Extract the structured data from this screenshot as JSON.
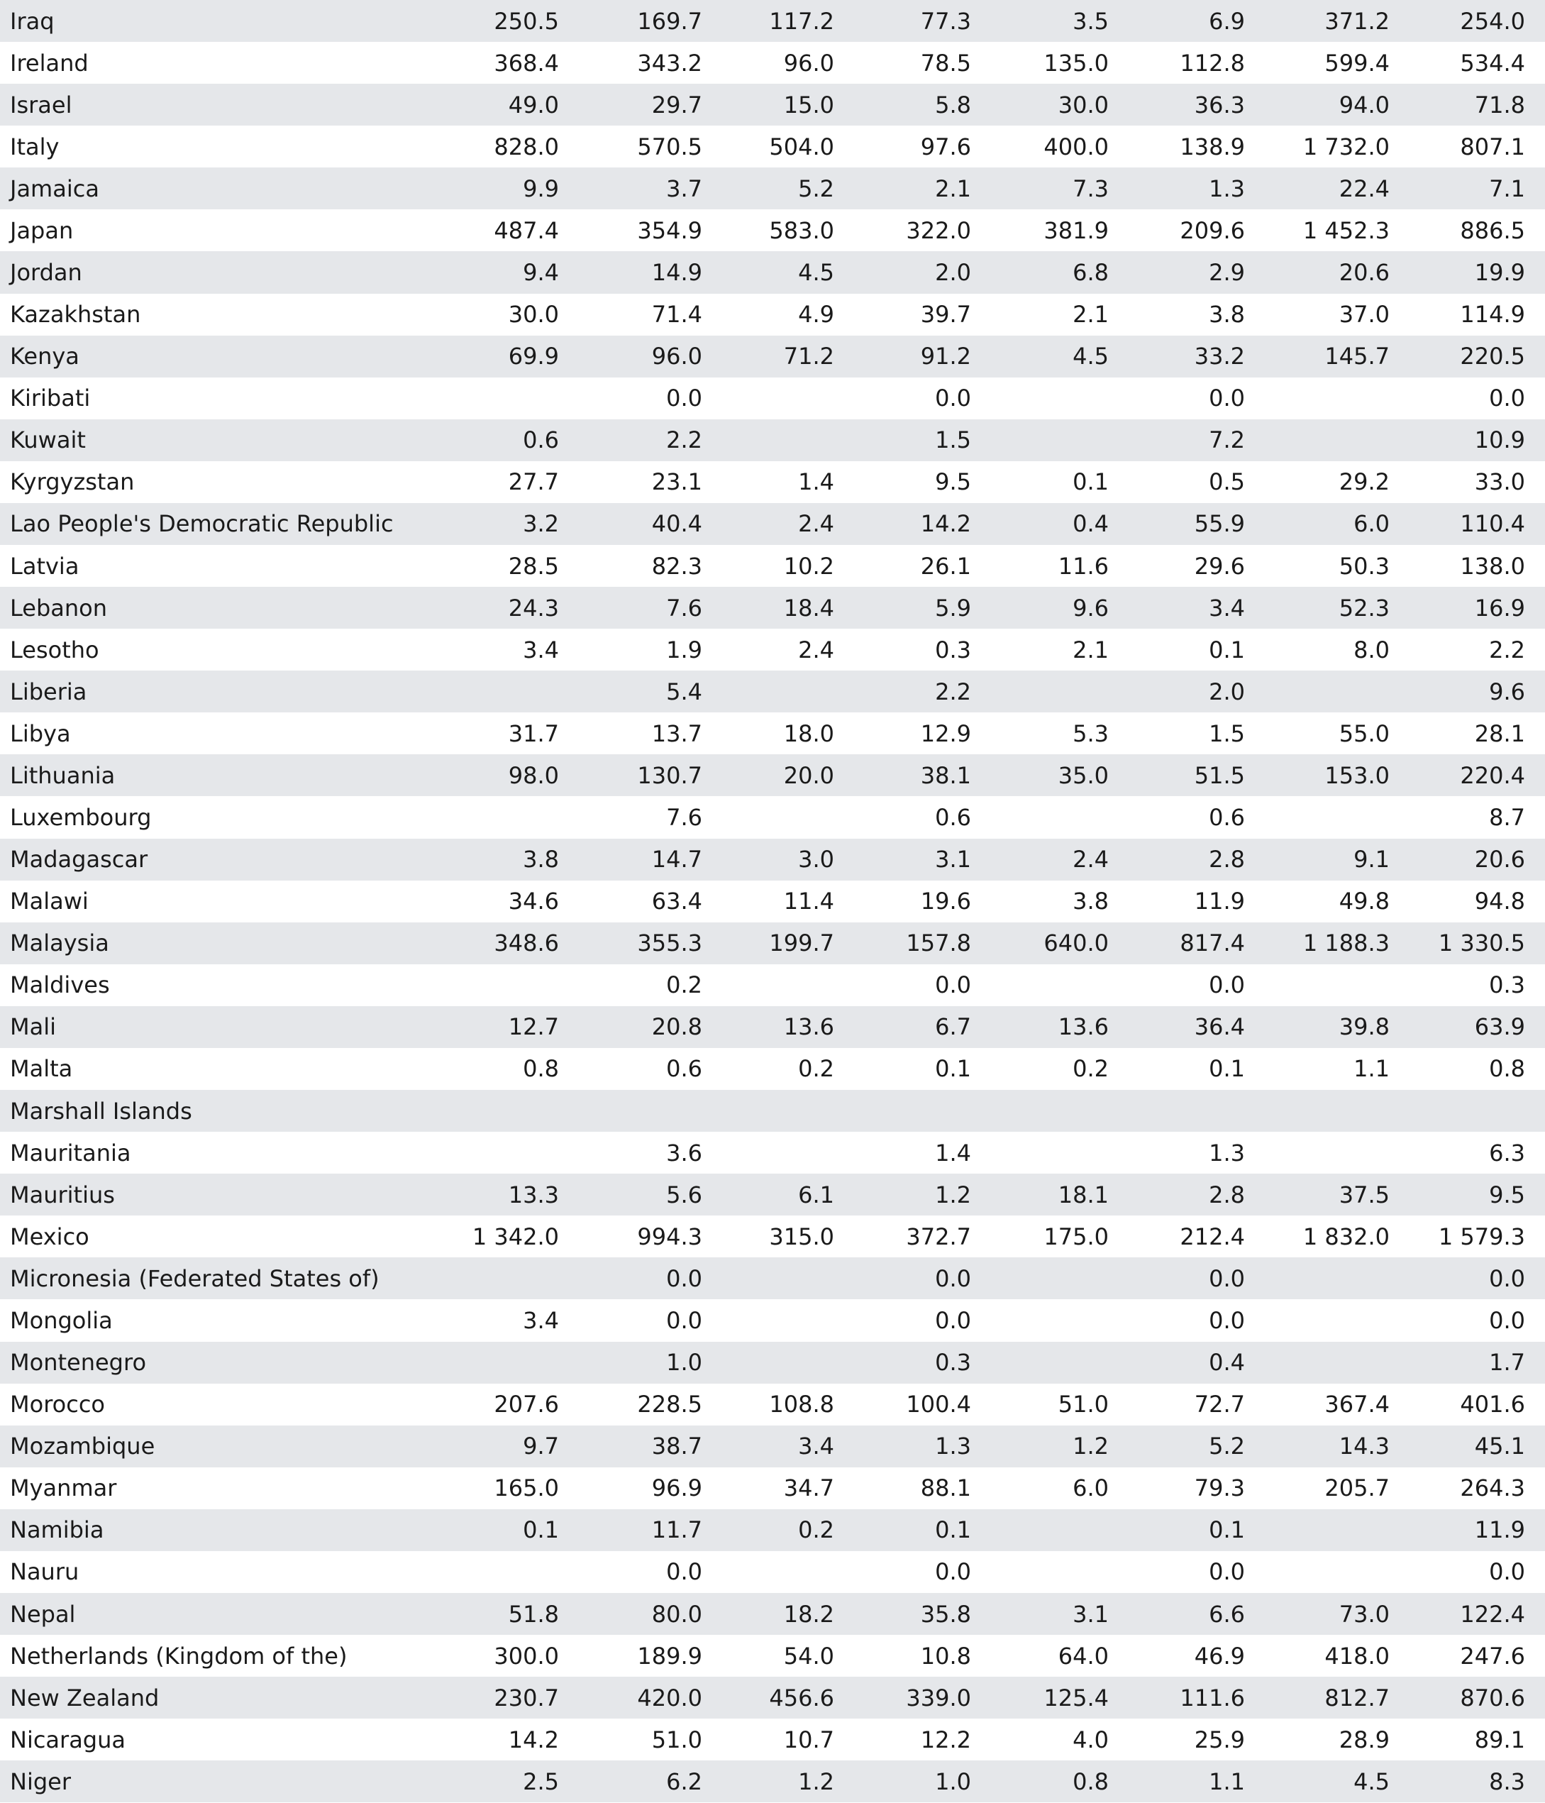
{
  "table": {
    "rows": [
      {
        "country": "Iraq",
        "values": [
          "250.5",
          "169.7",
          "117.2",
          "77.3",
          "3.5",
          "6.9",
          "371.2",
          "254.0"
        ]
      },
      {
        "country": "Ireland",
        "values": [
          "368.4",
          "343.2",
          "96.0",
          "78.5",
          "135.0",
          "112.8",
          "599.4",
          "534.4"
        ]
      },
      {
        "country": "Israel",
        "values": [
          "49.0",
          "29.7",
          "15.0",
          "5.8",
          "30.0",
          "36.3",
          "94.0",
          "71.8"
        ]
      },
      {
        "country": "Italy",
        "values": [
          "828.0",
          "570.5",
          "504.0",
          "97.6",
          "400.0",
          "138.9",
          "1 732.0",
          "807.1"
        ]
      },
      {
        "country": "Jamaica",
        "values": [
          "9.9",
          "3.7",
          "5.2",
          "2.1",
          "7.3",
          "1.3",
          "22.4",
          "7.1"
        ]
      },
      {
        "country": "Japan",
        "values": [
          "487.4",
          "354.9",
          "583.0",
          "322.0",
          "381.9",
          "209.6",
          "1 452.3",
          "886.5"
        ]
      },
      {
        "country": "Jordan",
        "values": [
          "9.4",
          "14.9",
          "4.5",
          "2.0",
          "6.8",
          "2.9",
          "20.6",
          "19.9"
        ]
      },
      {
        "country": "Kazakhstan",
        "values": [
          "30.0",
          "71.4",
          "4.9",
          "39.7",
          "2.1",
          "3.8",
          "37.0",
          "114.9"
        ]
      },
      {
        "country": "Kenya",
        "values": [
          "69.9",
          "96.0",
          "71.2",
          "91.2",
          "4.5",
          "33.2",
          "145.7",
          "220.5"
        ]
      },
      {
        "country": "Kiribati",
        "values": [
          "",
          "0.0",
          "",
          "0.0",
          "",
          "0.0",
          "",
          "0.0"
        ]
      },
      {
        "country": "Kuwait",
        "values": [
          "0.6",
          "2.2",
          "",
          "1.5",
          "",
          "7.2",
          "",
          "10.9"
        ]
      },
      {
        "country": "Kyrgyzstan",
        "values": [
          "27.7",
          "23.1",
          "1.4",
          "9.5",
          "0.1",
          "0.5",
          "29.2",
          "33.0"
        ]
      },
      {
        "country": "Lao People's Democratic Republic",
        "values": [
          "3.2",
          "40.4",
          "2.4",
          "14.2",
          "0.4",
          "55.9",
          "6.0",
          "110.4"
        ]
      },
      {
        "country": "Latvia",
        "values": [
          "28.5",
          "82.3",
          "10.2",
          "26.1",
          "11.6",
          "29.6",
          "50.3",
          "138.0"
        ]
      },
      {
        "country": "Lebanon",
        "values": [
          "24.3",
          "7.6",
          "18.4",
          "5.9",
          "9.6",
          "3.4",
          "52.3",
          "16.9"
        ]
      },
      {
        "country": "Lesotho",
        "values": [
          "3.4",
          "1.9",
          "2.4",
          "0.3",
          "2.1",
          "0.1",
          "8.0",
          "2.2"
        ]
      },
      {
        "country": "Liberia",
        "values": [
          "",
          "5.4",
          "",
          "2.2",
          "",
          "2.0",
          "",
          "9.6"
        ]
      },
      {
        "country": "Libya",
        "values": [
          "31.7",
          "13.7",
          "18.0",
          "12.9",
          "5.3",
          "1.5",
          "55.0",
          "28.1"
        ]
      },
      {
        "country": "Lithuania",
        "values": [
          "98.0",
          "130.7",
          "20.0",
          "38.1",
          "35.0",
          "51.5",
          "153.0",
          "220.4"
        ]
      },
      {
        "country": "Luxembourg",
        "values": [
          "",
          "7.6",
          "",
          "0.6",
          "",
          "0.6",
          "",
          "8.7"
        ]
      },
      {
        "country": "Madagascar",
        "values": [
          "3.8",
          "14.7",
          "3.0",
          "3.1",
          "2.4",
          "2.8",
          "9.1",
          "20.6"
        ]
      },
      {
        "country": "Malawi",
        "values": [
          "34.6",
          "63.4",
          "11.4",
          "19.6",
          "3.8",
          "11.9",
          "49.8",
          "94.8"
        ]
      },
      {
        "country": "Malaysia",
        "values": [
          "348.6",
          "355.3",
          "199.7",
          "157.8",
          "640.0",
          "817.4",
          "1 188.3",
          "1 330.5"
        ]
      },
      {
        "country": "Maldives",
        "values": [
          "",
          "0.2",
          "",
          "0.0",
          "",
          "0.0",
          "",
          "0.3"
        ]
      },
      {
        "country": "Mali",
        "values": [
          "12.7",
          "20.8",
          "13.6",
          "6.7",
          "13.6",
          "36.4",
          "39.8",
          "63.9"
        ]
      },
      {
        "country": "Malta",
        "values": [
          "0.8",
          "0.6",
          "0.2",
          "0.1",
          "0.2",
          "0.1",
          "1.1",
          "0.8"
        ]
      },
      {
        "country": "Marshall Islands",
        "values": [
          "",
          "",
          "",
          "",
          "",
          "",
          "",
          ""
        ]
      },
      {
        "country": "Mauritania",
        "values": [
          "",
          "3.6",
          "",
          "1.4",
          "",
          "1.3",
          "",
          "6.3"
        ]
      },
      {
        "country": "Mauritius",
        "values": [
          "13.3",
          "5.6",
          "6.1",
          "1.2",
          "18.1",
          "2.8",
          "37.5",
          "9.5"
        ]
      },
      {
        "country": "Mexico",
        "values": [
          "1 342.0",
          "994.3",
          "315.0",
          "372.7",
          "175.0",
          "212.4",
          "1 832.0",
          "1 579.3"
        ]
      },
      {
        "country": "Micronesia (Federated States of)",
        "values": [
          "",
          "0.0",
          "",
          "0.0",
          "",
          "0.0",
          "",
          "0.0"
        ]
      },
      {
        "country": "Mongolia",
        "values": [
          "3.4",
          "0.0",
          "",
          "0.0",
          "",
          "0.0",
          "",
          "0.0"
        ]
      },
      {
        "country": "Montenegro",
        "values": [
          "",
          "1.0",
          "",
          "0.3",
          "",
          "0.4",
          "",
          "1.7"
        ]
      },
      {
        "country": "Morocco",
        "values": [
          "207.6",
          "228.5",
          "108.8",
          "100.4",
          "51.0",
          "72.7",
          "367.4",
          "401.6"
        ]
      },
      {
        "country": "Mozambique",
        "values": [
          "9.7",
          "38.7",
          "3.4",
          "1.3",
          "1.2",
          "5.2",
          "14.3",
          "45.1"
        ]
      },
      {
        "country": "Myanmar",
        "values": [
          "165.0",
          "96.9",
          "34.7",
          "88.1",
          "6.0",
          "79.3",
          "205.7",
          "264.3"
        ]
      },
      {
        "country": "Namibia",
        "values": [
          "0.1",
          "11.7",
          "0.2",
          "0.1",
          "",
          "0.1",
          "",
          "11.9"
        ]
      },
      {
        "country": "Nauru",
        "values": [
          "",
          "0.0",
          "",
          "0.0",
          "",
          "0.0",
          "",
          "0.0"
        ]
      },
      {
        "country": "Nepal",
        "values": [
          "51.8",
          "80.0",
          "18.2",
          "35.8",
          "3.1",
          "6.6",
          "73.0",
          "122.4"
        ]
      },
      {
        "country": "Netherlands (Kingdom of the)",
        "values": [
          "300.0",
          "189.9",
          "54.0",
          "10.8",
          "64.0",
          "46.9",
          "418.0",
          "247.6"
        ]
      },
      {
        "country": "New Zealand",
        "values": [
          "230.7",
          "420.0",
          "456.6",
          "339.0",
          "125.4",
          "111.6",
          "812.7",
          "870.6"
        ]
      },
      {
        "country": "Nicaragua",
        "values": [
          "14.2",
          "51.0",
          "10.7",
          "12.2",
          "4.0",
          "25.9",
          "28.9",
          "89.1"
        ]
      },
      {
        "country": "Niger",
        "values": [
          "2.5",
          "6.2",
          "1.2",
          "1.0",
          "0.8",
          "1.1",
          "4.5",
          "8.3"
        ]
      }
    ]
  }
}
